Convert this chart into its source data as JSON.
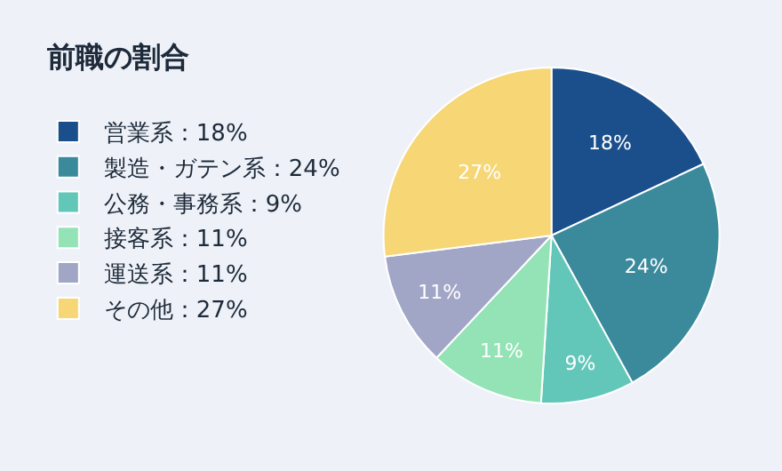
{
  "chart_data": {
    "type": "pie",
    "title": "前職の割合",
    "categories": [
      "営業系：18%",
      "製造・ガテン系：24%",
      "公務・事務系：9%",
      "接客系：11%",
      "運送系：11%",
      "その他：27%"
    ],
    "values": [
      18,
      24,
      9,
      11,
      11,
      27
    ],
    "value_labels": [
      "18%",
      "24%",
      "9%",
      "11%",
      "11%",
      "27%"
    ],
    "colors": [
      "#1b4f8c",
      "#3a8a9c",
      "#62c7b9",
      "#93e3b6",
      "#a2a6c6",
      "#f6d675"
    ],
    "legend": "left"
  }
}
